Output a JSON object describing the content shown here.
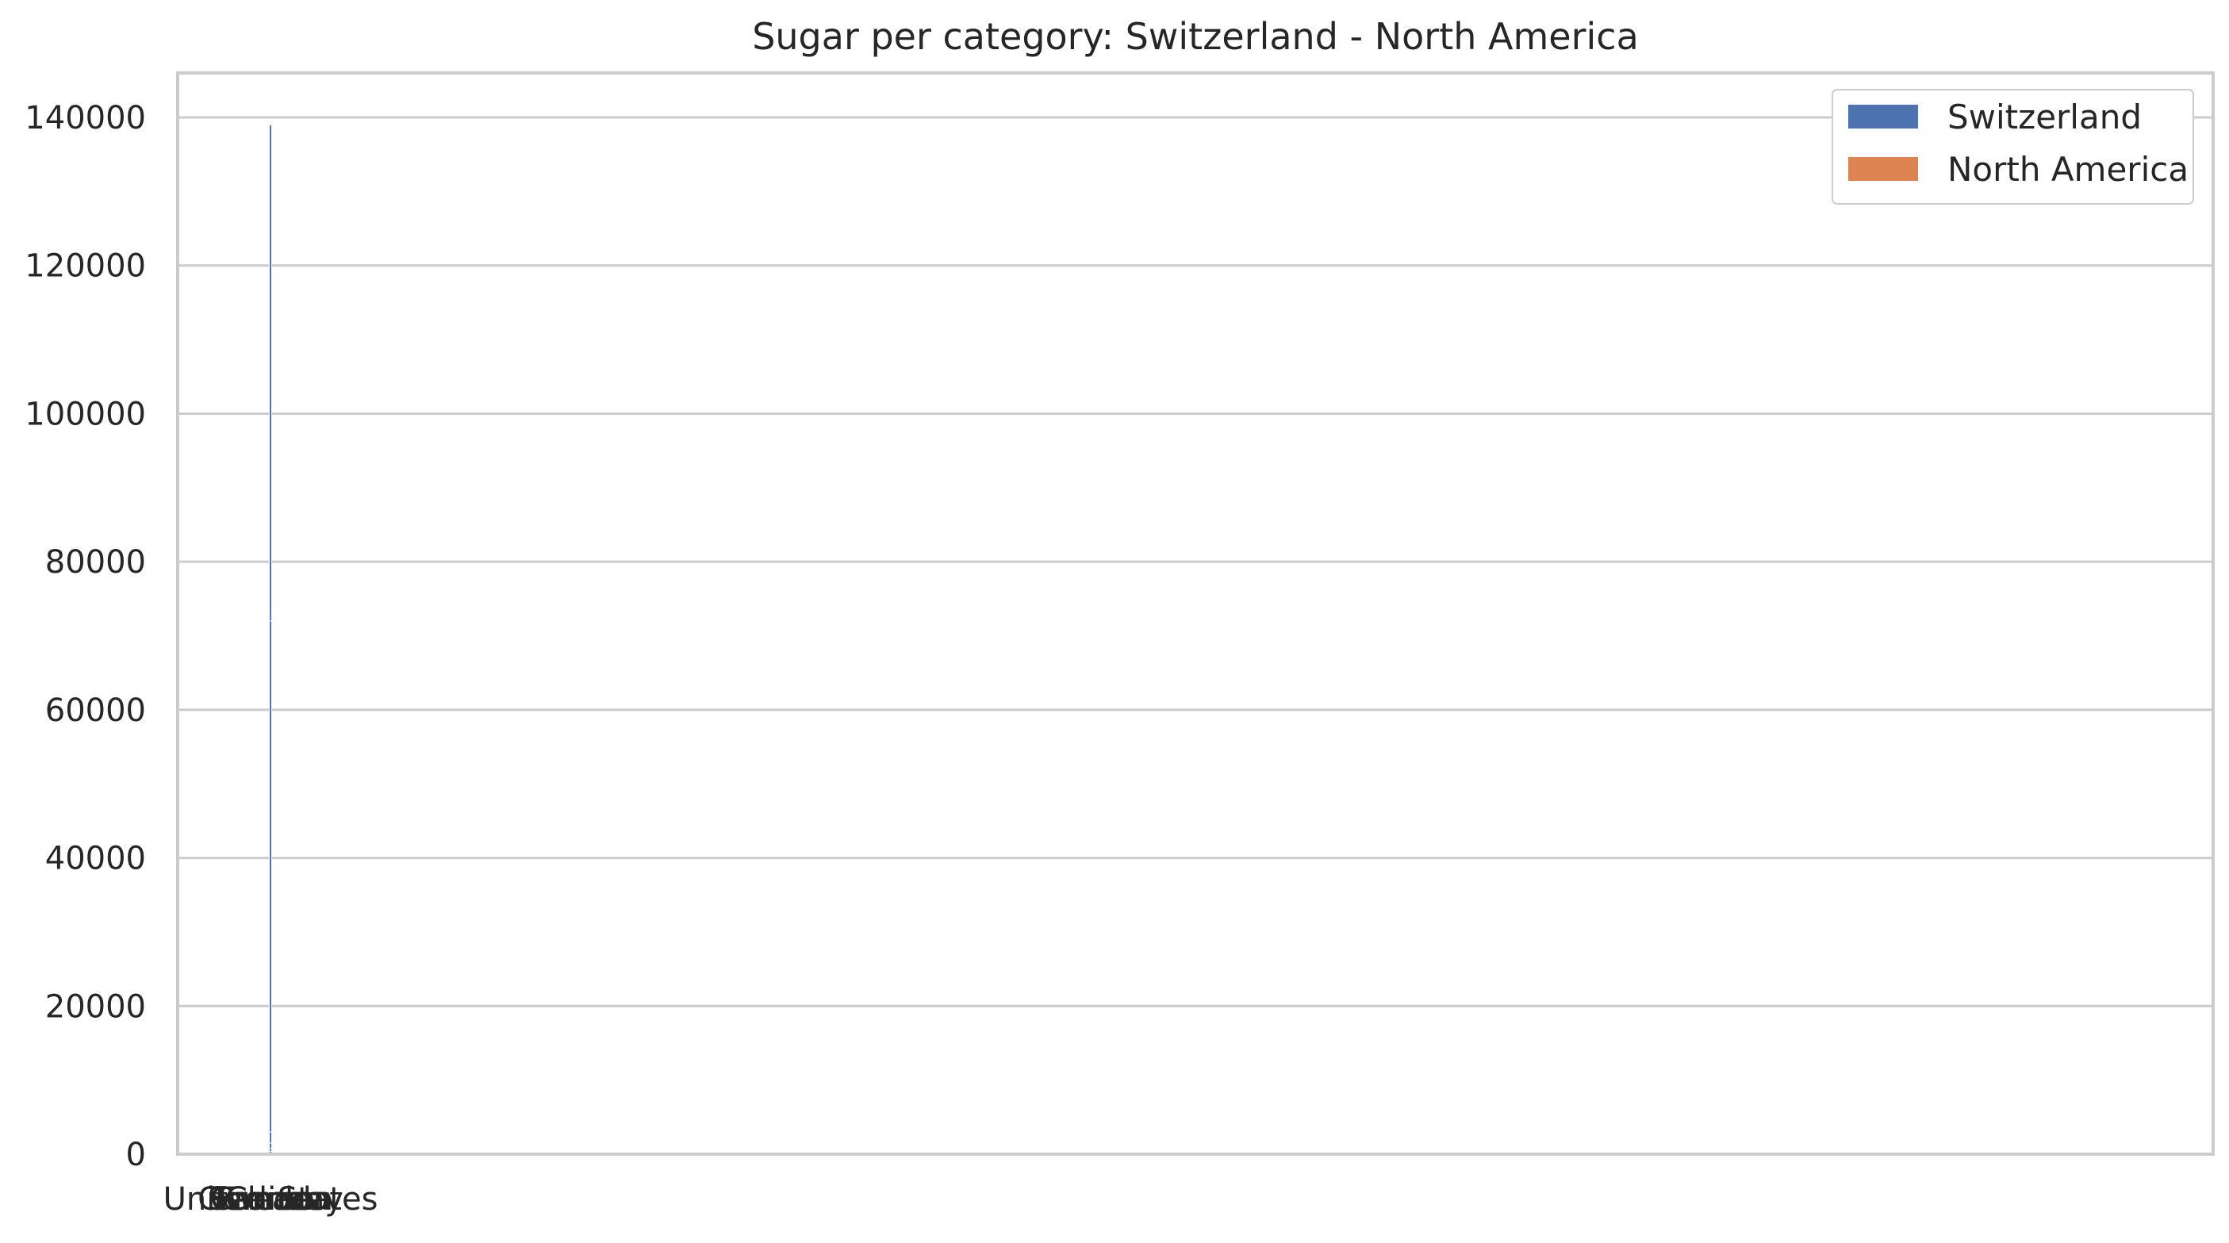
{
  "chart_data": {
    "type": "bar",
    "title": "Sugar per category: Switzerland - North America",
    "xlabel": "",
    "ylabel": "",
    "categories": [
      "United States",
      "Germany",
      "China",
      "Sweden",
      "Canada",
      "France"
    ],
    "series": [
      {
        "name": "Switzerland",
        "color": "#4c72b0",
        "values": [
          139000,
          72000,
          3000,
          1500,
          800,
          400
        ]
      },
      {
        "name": "North America",
        "color": "#dd8452",
        "values": [
          0,
          0,
          0,
          0,
          0,
          0
        ]
      }
    ],
    "ylim": [
      0,
      146000
    ],
    "yticks": [
      0,
      20000,
      40000,
      60000,
      80000,
      100000,
      120000,
      140000
    ],
    "grid": "horizontal",
    "legend_position": "top-right"
  }
}
